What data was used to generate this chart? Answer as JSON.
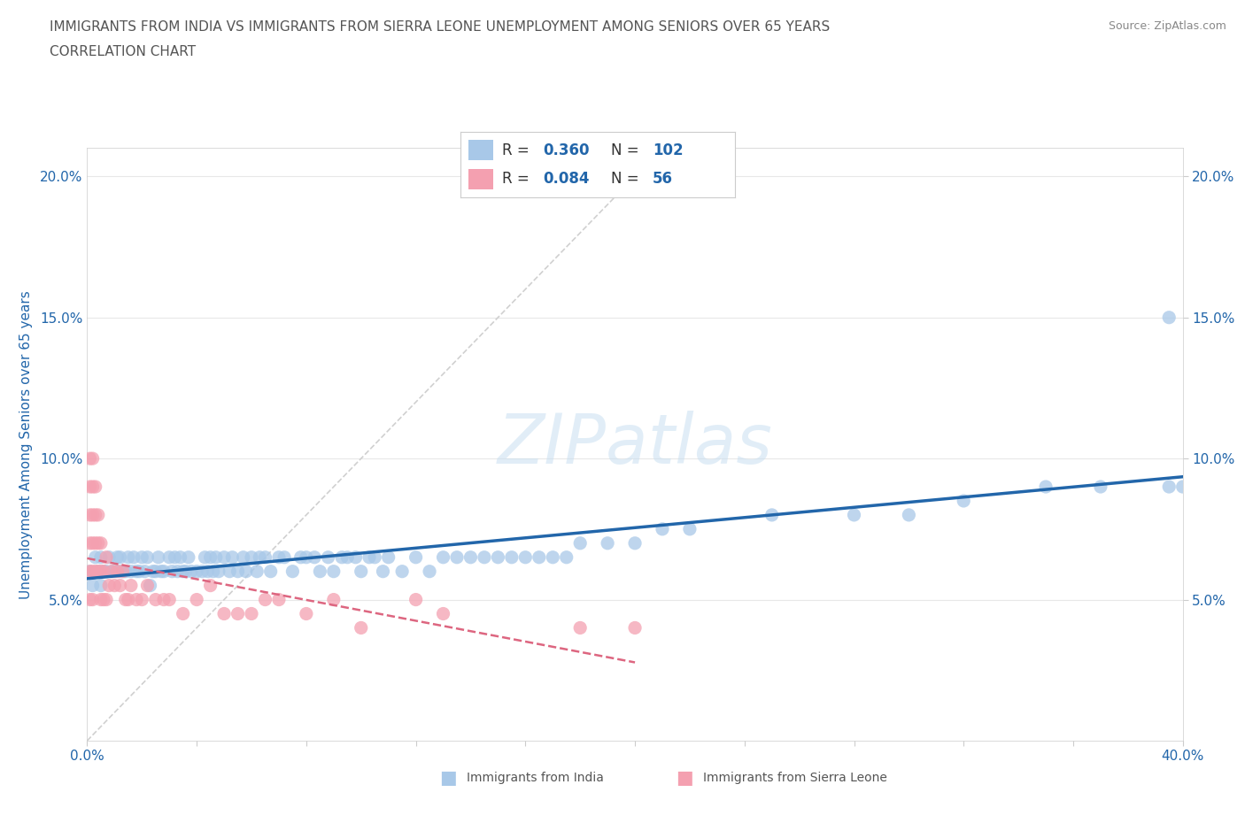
{
  "title_line1": "IMMIGRANTS FROM INDIA VS IMMIGRANTS FROM SIERRA LEONE UNEMPLOYMENT AMONG SENIORS OVER 65 YEARS",
  "title_line2": "CORRELATION CHART",
  "source_text": "Source: ZipAtlas.com",
  "ylabel": "Unemployment Among Seniors over 65 years",
  "xlim": [
    0.0,
    0.4
  ],
  "ylim": [
    0.0,
    0.21
  ],
  "india_R": 0.36,
  "india_N": 102,
  "sierra_R": 0.084,
  "sierra_N": 56,
  "india_color": "#a8c8e8",
  "sierra_color": "#f4a0b0",
  "india_line_color": "#2266aa",
  "sierra_line_color": "#dd6680",
  "grid_color": "#e8e8e8",
  "diag_color": "#d0d0d0",
  "india_scatter_x": [
    0.001,
    0.002,
    0.003,
    0.004,
    0.005,
    0.005,
    0.006,
    0.007,
    0.008,
    0.009,
    0.01,
    0.011,
    0.012,
    0.012,
    0.013,
    0.014,
    0.015,
    0.016,
    0.017,
    0.018,
    0.019,
    0.02,
    0.021,
    0.022,
    0.023,
    0.024,
    0.025,
    0.026,
    0.027,
    0.028,
    0.03,
    0.031,
    0.032,
    0.033,
    0.034,
    0.035,
    0.036,
    0.037,
    0.038,
    0.04,
    0.042,
    0.043,
    0.044,
    0.045,
    0.046,
    0.047,
    0.048,
    0.05,
    0.052,
    0.053,
    0.055,
    0.057,
    0.058,
    0.06,
    0.062,
    0.063,
    0.065,
    0.067,
    0.07,
    0.072,
    0.075,
    0.078,
    0.08,
    0.083,
    0.085,
    0.088,
    0.09,
    0.093,
    0.095,
    0.098,
    0.1,
    0.103,
    0.105,
    0.108,
    0.11,
    0.115,
    0.12,
    0.125,
    0.13,
    0.135,
    0.14,
    0.145,
    0.15,
    0.155,
    0.16,
    0.165,
    0.17,
    0.175,
    0.18,
    0.19,
    0.2,
    0.21,
    0.22,
    0.25,
    0.28,
    0.3,
    0.32,
    0.35,
    0.37,
    0.395,
    0.395,
    0.4
  ],
  "india_scatter_y": [
    0.06,
    0.055,
    0.065,
    0.06,
    0.065,
    0.055,
    0.06,
    0.06,
    0.065,
    0.06,
    0.06,
    0.065,
    0.06,
    0.065,
    0.06,
    0.06,
    0.065,
    0.06,
    0.065,
    0.06,
    0.06,
    0.065,
    0.06,
    0.065,
    0.055,
    0.06,
    0.06,
    0.065,
    0.06,
    0.06,
    0.065,
    0.06,
    0.065,
    0.06,
    0.065,
    0.06,
    0.06,
    0.065,
    0.06,
    0.06,
    0.06,
    0.065,
    0.06,
    0.065,
    0.06,
    0.065,
    0.06,
    0.065,
    0.06,
    0.065,
    0.06,
    0.065,
    0.06,
    0.065,
    0.06,
    0.065,
    0.065,
    0.06,
    0.065,
    0.065,
    0.06,
    0.065,
    0.065,
    0.065,
    0.06,
    0.065,
    0.06,
    0.065,
    0.065,
    0.065,
    0.06,
    0.065,
    0.065,
    0.06,
    0.065,
    0.06,
    0.065,
    0.06,
    0.065,
    0.065,
    0.065,
    0.065,
    0.065,
    0.065,
    0.065,
    0.065,
    0.065,
    0.065,
    0.07,
    0.07,
    0.07,
    0.075,
    0.075,
    0.08,
    0.08,
    0.08,
    0.085,
    0.09,
    0.09,
    0.09,
    0.15,
    0.09
  ],
  "sierra_scatter_x": [
    0.001,
    0.001,
    0.001,
    0.001,
    0.001,
    0.001,
    0.002,
    0.002,
    0.002,
    0.002,
    0.002,
    0.002,
    0.003,
    0.003,
    0.003,
    0.003,
    0.004,
    0.004,
    0.004,
    0.005,
    0.005,
    0.005,
    0.006,
    0.006,
    0.007,
    0.007,
    0.008,
    0.009,
    0.01,
    0.011,
    0.012,
    0.013,
    0.014,
    0.015,
    0.016,
    0.018,
    0.02,
    0.022,
    0.025,
    0.028,
    0.03,
    0.035,
    0.04,
    0.045,
    0.05,
    0.055,
    0.06,
    0.065,
    0.07,
    0.08,
    0.09,
    0.1,
    0.12,
    0.13,
    0.18,
    0.2
  ],
  "sierra_scatter_y": [
    0.05,
    0.06,
    0.07,
    0.08,
    0.09,
    0.1,
    0.05,
    0.06,
    0.07,
    0.08,
    0.09,
    0.1,
    0.06,
    0.07,
    0.08,
    0.09,
    0.06,
    0.07,
    0.08,
    0.05,
    0.06,
    0.07,
    0.05,
    0.06,
    0.05,
    0.065,
    0.055,
    0.06,
    0.055,
    0.06,
    0.055,
    0.06,
    0.05,
    0.05,
    0.055,
    0.05,
    0.05,
    0.055,
    0.05,
    0.05,
    0.05,
    0.045,
    0.05,
    0.055,
    0.045,
    0.045,
    0.045,
    0.05,
    0.05,
    0.045,
    0.05,
    0.04,
    0.05,
    0.045,
    0.04,
    0.04
  ],
  "background_color": "#ffffff",
  "title_color": "#555555",
  "axis_label_color": "#2266aa",
  "tick_label_color": "#2266aa"
}
